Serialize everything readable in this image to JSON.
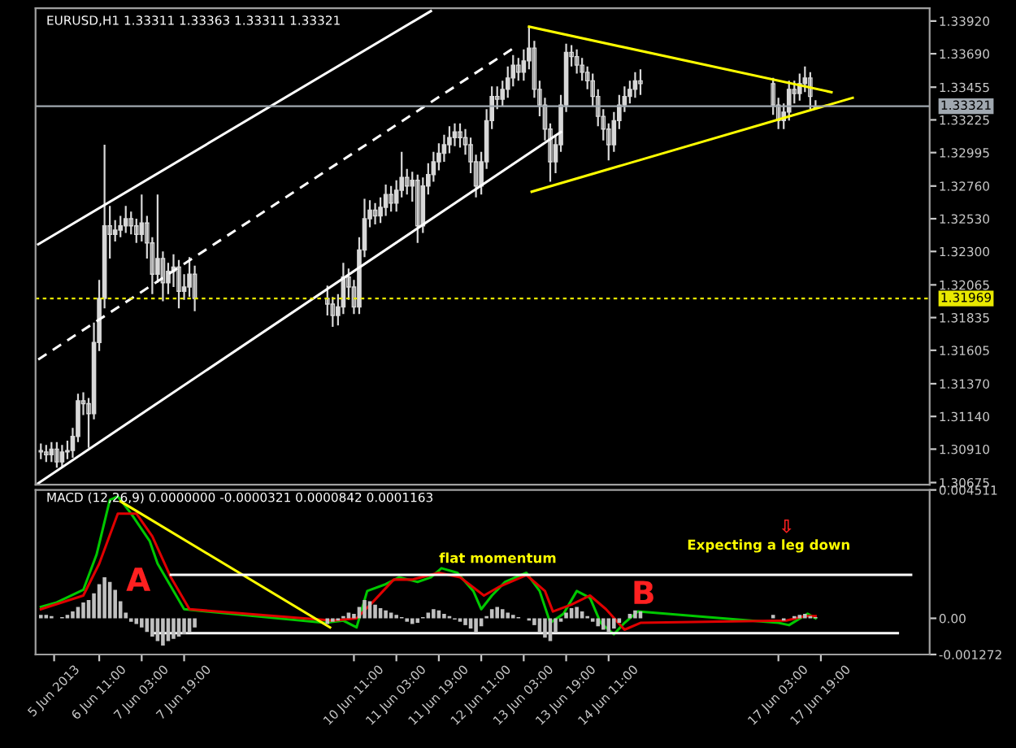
{
  "chart_data": [
    {
      "type": "candlestick",
      "title": "EURUSD,H1 1.33311 1.33363 1.33311 1.33321",
      "color": "#d8d8d8",
      "tick_labels": "y",
      "grid": false,
      "x": [
        "2013-06-05T13:00",
        "2013-06-05T15:00",
        "2013-06-05T17:00",
        "2013-06-05T19:00",
        "2013-06-05T21:00",
        "2013-06-05T23:00",
        "2013-06-06T01:00",
        "2013-06-06T03:00",
        "2013-06-06T05:00",
        "2013-06-06T07:00",
        "2013-06-06T09:00",
        "2013-06-06T11:00",
        "2013-06-06T13:00",
        "2013-06-06T15:00",
        "2013-06-06T17:00",
        "2013-06-06T19:00",
        "2013-06-06T21:00",
        "2013-06-06T23:00",
        "2013-06-07T01:00",
        "2013-06-07T03:00",
        "2013-06-07T05:00",
        "2013-06-07T07:00",
        "2013-06-07T09:00",
        "2013-06-07T11:00",
        "2013-06-07T13:00",
        "2013-06-07T15:00",
        "2013-06-07T17:00",
        "2013-06-07T19:00",
        "2013-06-07T21:00",
        "2013-06-07T23:00",
        "2013-06-10T01:00",
        "2013-06-10T03:00",
        "2013-06-10T05:00",
        "2013-06-10T07:00",
        "2013-06-10T09:00",
        "2013-06-10T11:00",
        "2013-06-10T13:00",
        "2013-06-10T15:00",
        "2013-06-10T17:00",
        "2013-06-10T19:00",
        "2013-06-10T21:00",
        "2013-06-10T23:00",
        "2013-06-11T01:00",
        "2013-06-11T03:00",
        "2013-06-11T05:00",
        "2013-06-11T07:00",
        "2013-06-11T09:00",
        "2013-06-11T11:00",
        "2013-06-11T13:00",
        "2013-06-11T15:00",
        "2013-06-11T17:00",
        "2013-06-11T19:00",
        "2013-06-11T21:00",
        "2013-06-11T23:00",
        "2013-06-12T01:00",
        "2013-06-12T03:00",
        "2013-06-12T05:00",
        "2013-06-12T07:00",
        "2013-06-12T09:00",
        "2013-06-12T11:00",
        "2013-06-12T13:00",
        "2013-06-12T15:00",
        "2013-06-12T17:00",
        "2013-06-12T19:00",
        "2013-06-12T21:00",
        "2013-06-12T23:00",
        "2013-06-13T01:00",
        "2013-06-13T03:00",
        "2013-06-13T05:00",
        "2013-06-13T07:00",
        "2013-06-13T09:00",
        "2013-06-13T11:00",
        "2013-06-13T13:00",
        "2013-06-13T15:00",
        "2013-06-13T17:00",
        "2013-06-13T19:00",
        "2013-06-13T21:00",
        "2013-06-13T23:00",
        "2013-06-14T01:00",
        "2013-06-14T03:00",
        "2013-06-14T05:00",
        "2013-06-14T07:00",
        "2013-06-14T09:00",
        "2013-06-14T11:00",
        "2013-06-14T13:00",
        "2013-06-14T15:00",
        "2013-06-14T17:00",
        "2013-06-14T19:00",
        "2013-06-14T21:00",
        "2013-06-14T23:00",
        "2013-06-17T01:00",
        "2013-06-17T03:00",
        "2013-06-17T05:00",
        "2013-06-17T07:00",
        "2013-06-17T09:00",
        "2013-06-17T11:00",
        "2013-06-17T13:00",
        "2013-06-17T15:00",
        "2013-06-17T17:00"
      ],
      "ohlc": [
        [
          1.309,
          1.3095,
          1.3084,
          1.3089
        ],
        [
          1.3089,
          1.3094,
          1.3082,
          1.3087
        ],
        [
          1.3087,
          1.3096,
          1.3082,
          1.3091
        ],
        [
          1.3091,
          1.3096,
          1.3078,
          1.3082
        ],
        [
          1.3082,
          1.3094,
          1.3078,
          1.3089
        ],
        [
          1.3089,
          1.3097,
          1.3084,
          1.309
        ],
        [
          1.309,
          1.3106,
          1.3085,
          1.31
        ],
        [
          1.31,
          1.313,
          1.3096,
          1.3125
        ],
        [
          1.3125,
          1.3131,
          1.3115,
          1.3123
        ],
        [
          1.3123,
          1.3127,
          1.3092,
          1.3116
        ],
        [
          1.3116,
          1.318,
          1.3112,
          1.3166
        ],
        [
          1.3166,
          1.321,
          1.316,
          1.3197
        ],
        [
          1.3197,
          1.3305,
          1.319,
          1.3248
        ],
        [
          1.3248,
          1.3262,
          1.3225,
          1.3242
        ],
        [
          1.3242,
          1.3252,
          1.3237,
          1.3245
        ],
        [
          1.3245,
          1.3255,
          1.324,
          1.3248
        ],
        [
          1.3248,
          1.3262,
          1.3243,
          1.3253
        ],
        [
          1.3253,
          1.3258,
          1.3242,
          1.3248
        ],
        [
          1.3248,
          1.3253,
          1.3236,
          1.3242
        ],
        [
          1.3242,
          1.327,
          1.3237,
          1.325
        ],
        [
          1.325,
          1.3255,
          1.3225,
          1.3236
        ],
        [
          1.3236,
          1.324,
          1.32,
          1.3214
        ],
        [
          1.3214,
          1.327,
          1.3208,
          1.3225
        ],
        [
          1.3225,
          1.323,
          1.3195,
          1.3208
        ],
        [
          1.3208,
          1.3222,
          1.32,
          1.3216
        ],
        [
          1.3216,
          1.3228,
          1.3205,
          1.3219
        ],
        [
          1.3219,
          1.3224,
          1.319,
          1.3202
        ],
        [
          1.3202,
          1.3214,
          1.3196,
          1.3205
        ],
        [
          1.3205,
          1.3226,
          1.3198,
          1.3214
        ],
        [
          1.3214,
          1.322,
          1.3188,
          1.3197
        ],
        [
          1.3197,
          1.3206,
          1.3185,
          1.3193
        ],
        [
          1.3193,
          1.3198,
          1.3177,
          1.3185
        ],
        [
          1.3185,
          1.32,
          1.3178,
          1.3191
        ],
        [
          1.3191,
          1.3222,
          1.3186,
          1.3212
        ],
        [
          1.3212,
          1.3218,
          1.3196,
          1.3205
        ],
        [
          1.3205,
          1.321,
          1.3186,
          1.3191
        ],
        [
          1.3191,
          1.324,
          1.3186,
          1.3231
        ],
        [
          1.3231,
          1.3267,
          1.3226,
          1.3253
        ],
        [
          1.3253,
          1.3266,
          1.3247,
          1.3259
        ],
        [
          1.3259,
          1.3264,
          1.3249,
          1.3255
        ],
        [
          1.3255,
          1.3268,
          1.325,
          1.3261
        ],
        [
          1.3261,
          1.3277,
          1.3255,
          1.327
        ],
        [
          1.327,
          1.3276,
          1.3258,
          1.3264
        ],
        [
          1.3264,
          1.328,
          1.3258,
          1.3273
        ],
        [
          1.3273,
          1.33,
          1.3268,
          1.3282
        ],
        [
          1.3282,
          1.3288,
          1.327,
          1.3276
        ],
        [
          1.3276,
          1.3286,
          1.3265,
          1.328
        ],
        [
          1.328,
          1.3284,
          1.3236,
          1.3248
        ],
        [
          1.3248,
          1.3282,
          1.3243,
          1.3276
        ],
        [
          1.3276,
          1.3292,
          1.327,
          1.3284
        ],
        [
          1.3284,
          1.33,
          1.3279,
          1.3293
        ],
        [
          1.3293,
          1.3306,
          1.3287,
          1.3299
        ],
        [
          1.3299,
          1.3312,
          1.3293,
          1.3305
        ],
        [
          1.3305,
          1.3318,
          1.3299,
          1.331
        ],
        [
          1.331,
          1.332,
          1.3304,
          1.3314
        ],
        [
          1.3314,
          1.332,
          1.3303,
          1.331
        ],
        [
          1.331,
          1.3316,
          1.3298,
          1.3305
        ],
        [
          1.3305,
          1.331,
          1.3285,
          1.3293
        ],
        [
          1.3293,
          1.3298,
          1.3268,
          1.3276
        ],
        [
          1.3276,
          1.33,
          1.327,
          1.3293
        ],
        [
          1.3293,
          1.333,
          1.3288,
          1.3322
        ],
        [
          1.3322,
          1.3346,
          1.3316,
          1.3339
        ],
        [
          1.3339,
          1.3346,
          1.333,
          1.3337
        ],
        [
          1.3337,
          1.335,
          1.3332,
          1.3344
        ],
        [
          1.3344,
          1.336,
          1.3338,
          1.3352
        ],
        [
          1.3352,
          1.3368,
          1.3346,
          1.3361
        ],
        [
          1.3361,
          1.3366,
          1.335,
          1.3356
        ],
        [
          1.3356,
          1.3372,
          1.335,
          1.3364
        ],
        [
          1.3364,
          1.3388,
          1.3358,
          1.3373
        ],
        [
          1.3373,
          1.3378,
          1.3338,
          1.3344
        ],
        [
          1.3344,
          1.335,
          1.3325,
          1.3333
        ],
        [
          1.3333,
          1.3338,
          1.3308,
          1.3316
        ],
        [
          1.3316,
          1.332,
          1.3279,
          1.3293
        ],
        [
          1.3293,
          1.3312,
          1.3285,
          1.3305
        ],
        [
          1.3305,
          1.334,
          1.33,
          1.3333
        ],
        [
          1.3333,
          1.3376,
          1.3328,
          1.337
        ],
        [
          1.337,
          1.3375,
          1.336,
          1.3367
        ],
        [
          1.3367,
          1.3372,
          1.3355,
          1.3361
        ],
        [
          1.3361,
          1.3366,
          1.335,
          1.3356
        ],
        [
          1.3356,
          1.336,
          1.3344,
          1.335
        ],
        [
          1.335,
          1.3355,
          1.3332,
          1.3339
        ],
        [
          1.3339,
          1.3344,
          1.3318,
          1.3325
        ],
        [
          1.3325,
          1.333,
          1.3308,
          1.3316
        ],
        [
          1.3316,
          1.332,
          1.3294,
          1.3305
        ],
        [
          1.3305,
          1.3328,
          1.33,
          1.3322
        ],
        [
          1.3322,
          1.334,
          1.3316,
          1.3333
        ],
        [
          1.3333,
          1.3346,
          1.3328,
          1.3339
        ],
        [
          1.3339,
          1.335,
          1.3334,
          1.3344
        ],
        [
          1.3344,
          1.3356,
          1.3338,
          1.335
        ],
        [
          1.335,
          1.3358,
          1.334,
          1.3348
        ],
        [
          1.3348,
          1.3352,
          1.3326,
          1.3333
        ],
        [
          1.3333,
          1.3338,
          1.3316,
          1.3322
        ],
        [
          1.3322,
          1.3334,
          1.3316,
          1.3328
        ],
        [
          1.3328,
          1.335,
          1.3322,
          1.3344
        ],
        [
          1.3344,
          1.335,
          1.3334,
          1.3341
        ],
        [
          1.3341,
          1.3355,
          1.3336,
          1.3348
        ],
        [
          1.3348,
          1.336,
          1.3342,
          1.3352
        ],
        [
          1.3352,
          1.3356,
          1.333,
          1.3339
        ],
        [
          1.33311,
          1.33363,
          1.33311,
          1.33321
        ]
      ],
      "xlim": [
        "2013-06-05T11:00",
        "2013-06-19T12:00"
      ],
      "ylim": [
        1.3066,
        1.3401
      ],
      "yticks": [
        {
          "value": 1.3392,
          "label": "1.33920"
        },
        {
          "value": 1.3369,
          "label": "1.33690"
        },
        1.33455,
        1.33225,
        1.32995,
        {
          "value": 1.3276,
          "label": "1.32760"
        },
        {
          "value": 1.3253,
          "label": "1.32530"
        },
        {
          "value": 1.323,
          "label": "1.32300"
        },
        1.32065,
        1.31835,
        1.31605,
        {
          "value": 1.3137,
          "label": "1.31370"
        },
        {
          "value": 1.3114,
          "label": "1.31140"
        },
        {
          "value": 1.3091,
          "label": "1.30910"
        },
        1.30675
      ],
      "ref_lines": [
        {
          "axis": "y",
          "value": 1.33321,
          "label": "1.33321",
          "color": "#a0a8b0",
          "line_style": "solid"
        },
        {
          "axis": "y",
          "value": 1.31969,
          "label": "1.31969",
          "color": "#e8e800",
          "line_style": "dotted"
        }
      ],
      "series": [
        {
          "type": "line",
          "x": [
            "2013-06-05T12:00",
            "2013-06-11T16:00"
          ],
          "values": [
            1.3235,
            1.3399
          ],
          "color": "#ffffff",
          "line_style": "solid"
        },
        {
          "type": "line",
          "x": [
            "2013-06-05T12:00",
            "2013-06-13T00:00"
          ],
          "values": [
            1.3154,
            1.3374
          ],
          "color": "#ffffff",
          "line_style": "dashed"
        },
        {
          "type": "line",
          "x": [
            "2013-06-05T12:00",
            "2013-06-13T17:00"
          ],
          "values": [
            1.3067,
            1.3314
          ],
          "color": "#ffffff",
          "line_style": "solid"
        },
        {
          "type": "line",
          "x": [
            "2013-06-13T05:00",
            "2013-06-17T23:00"
          ],
          "values": [
            1.3388,
            1.3342
          ],
          "color": "#ffff00",
          "line_style": "solid"
        },
        {
          "type": "line",
          "x": [
            "2013-06-13T06:00",
            "2013-06-18T07:00"
          ],
          "values": [
            1.3272,
            1.3338
          ],
          "color": "#ffff00",
          "line_style": "solid"
        }
      ]
    },
    {
      "type": "bar",
      "title": "MACD (12,26,9) 0.0000000 -0.0000321 0.0000842 0.0001163",
      "grid": false,
      "xlim": [
        "2013-06-05T11:00",
        "2013-06-19T12:00"
      ],
      "ylim": [
        -0.001272,
        0.004511
      ],
      "yticks": [
        0.004511,
        {
          "value": 0,
          "label": "0.00"
        },
        -0.001272
      ],
      "xticks": [
        {
          "value": "2013-06-05T18:00",
          "label": "5 Jun 2013"
        },
        {
          "value": "2013-06-06T11:00",
          "label": "6 Jun 11:00"
        },
        {
          "value": "2013-06-07T03:00",
          "label": "7 Jun 03:00"
        },
        {
          "value": "2013-06-07T19:00",
          "label": "7 Jun 19:00"
        },
        {
          "value": "2013-06-10T11:00",
          "label": "10 Jun 11:00"
        },
        {
          "value": "2013-06-11T03:00",
          "label": "11 Jun 03:00"
        },
        {
          "value": "2013-06-11T19:00",
          "label": "11 Jun 19:00"
        },
        {
          "value": "2013-06-12T11:00",
          "label": "12 Jun 11:00"
        },
        {
          "value": "2013-06-13T03:00",
          "label": "13 Jun 03:00"
        },
        {
          "value": "2013-06-13T19:00",
          "label": "13 Jun 19:00"
        },
        {
          "value": "2013-06-14T11:00",
          "label": "14 Jun 11:00"
        },
        {
          "value": "2013-06-17T03:00",
          "label": "17 Jun 03:00"
        },
        {
          "value": "2013-06-17T19:00",
          "label": "17 Jun 19:00"
        }
      ],
      "annotations": [
        "A",
        "flat momentum",
        "B",
        "Expecting a leg down",
        "⇩"
      ],
      "series": [
        {
          "type": "bar",
          "color": "#c0c0c0",
          "x": [
            "2013-06-05T13:00",
            "2013-06-05T15:00",
            "2013-06-05T17:00",
            "2013-06-05T19:00",
            "2013-06-05T21:00",
            "2013-06-05T23:00",
            "2013-06-06T01:00",
            "2013-06-06T03:00",
            "2013-06-06T05:00",
            "2013-06-06T07:00",
            "2013-06-06T09:00",
            "2013-06-06T11:00",
            "2013-06-06T13:00",
            "2013-06-06T15:00",
            "2013-06-06T17:00",
            "2013-06-06T19:00",
            "2013-06-06T21:00",
            "2013-06-06T23:00",
            "2013-06-07T01:00",
            "2013-06-07T03:00",
            "2013-06-07T05:00",
            "2013-06-07T07:00",
            "2013-06-07T09:00",
            "2013-06-07T11:00",
            "2013-06-07T13:00",
            "2013-06-07T15:00",
            "2013-06-07T17:00",
            "2013-06-07T19:00",
            "2013-06-07T21:00",
            "2013-06-07T23:00",
            "2013-06-10T01:00",
            "2013-06-10T03:00",
            "2013-06-10T05:00",
            "2013-06-10T07:00",
            "2013-06-10T09:00",
            "2013-06-10T11:00",
            "2013-06-10T13:00",
            "2013-06-10T15:00",
            "2013-06-10T17:00",
            "2013-06-10T19:00",
            "2013-06-10T21:00",
            "2013-06-10T23:00",
            "2013-06-11T01:00",
            "2013-06-11T03:00",
            "2013-06-11T05:00",
            "2013-06-11T07:00",
            "2013-06-11T09:00",
            "2013-06-11T11:00",
            "2013-06-11T13:00",
            "2013-06-11T15:00",
            "2013-06-11T17:00",
            "2013-06-11T19:00",
            "2013-06-11T21:00",
            "2013-06-11T23:00",
            "2013-06-12T01:00",
            "2013-06-12T03:00",
            "2013-06-12T05:00",
            "2013-06-12T07:00",
            "2013-06-12T09:00",
            "2013-06-12T11:00",
            "2013-06-12T13:00",
            "2013-06-12T15:00",
            "2013-06-12T17:00",
            "2013-06-12T19:00",
            "2013-06-12T21:00",
            "2013-06-12T23:00",
            "2013-06-13T01:00",
            "2013-06-13T03:00",
            "2013-06-13T05:00",
            "2013-06-13T07:00",
            "2013-06-13T09:00",
            "2013-06-13T11:00",
            "2013-06-13T13:00",
            "2013-06-13T15:00",
            "2013-06-13T17:00",
            "2013-06-13T19:00",
            "2013-06-13T21:00",
            "2013-06-13T23:00",
            "2013-06-14T01:00",
            "2013-06-14T03:00",
            "2013-06-14T05:00",
            "2013-06-14T07:00",
            "2013-06-14T09:00",
            "2013-06-14T11:00",
            "2013-06-14T13:00",
            "2013-06-14T15:00",
            "2013-06-14T17:00",
            "2013-06-14T19:00",
            "2013-06-14T21:00",
            "2013-06-14T23:00",
            "2013-06-17T01:00",
            "2013-06-17T03:00",
            "2013-06-17T05:00",
            "2013-06-17T07:00",
            "2013-06-17T09:00",
            "2013-06-17T11:00",
            "2013-06-17T13:00",
            "2013-06-17T15:00",
            "2013-06-17T17:00"
          ],
          "values": [
            0.00012,
            0.00012,
            8e-05,
            0,
            4e-05,
            0.00012,
            0.00024,
            0.0004,
            0.00056,
            0.00064,
            0.00088,
            0.0012,
            0.00144,
            0.00128,
            0.001,
            0.0006,
            0.0002,
            -0.00012,
            -0.0002,
            -0.00032,
            -0.00048,
            -0.00064,
            -0.0008,
            -0.00096,
            -0.0008,
            -0.00072,
            -0.00064,
            -0.00056,
            -0.00048,
            -0.00032,
            -0.0002,
            -0.00012,
            -8e-05,
            8e-05,
            0.0002,
            0.00016,
            0.0004,
            0.00064,
            0.0006,
            0.00048,
            0.00036,
            0.00028,
            0.0002,
            0.00012,
            4e-05,
            -0.00012,
            -0.0002,
            -0.00016,
            4e-05,
            0.0002,
            0.00032,
            0.00028,
            0.00016,
            8e-05,
            -4e-05,
            -0.00012,
            -0.00024,
            -0.00036,
            -0.00048,
            -0.00028,
            8e-05,
            0.00032,
            0.0004,
            0.00032,
            0.0002,
            0.00012,
            4e-05,
            0,
            -8e-05,
            -0.00024,
            -0.00048,
            -0.00068,
            -0.0008,
            -0.00048,
            -0.00012,
            0.0002,
            0.00036,
            0.0004,
            0.00024,
            8e-05,
            -0.00012,
            -0.00028,
            -0.0004,
            -0.00048,
            -0.00036,
            -0.00016,
            0,
            0.00016,
            0.00028,
            0.00024,
            0.00012,
            0,
            -8e-05,
            0,
            8e-05,
            0.00012,
            0.00016,
            8e-05,
            4e-05
          ]
        },
        {
          "type": "line",
          "color": "#00c800",
          "line_style": "solid",
          "x": [
            "2013-06-05T13:00",
            "2013-06-05T19:00",
            "2013-06-06T05:00",
            "2013-06-06T10:00",
            "2013-06-06T15:00",
            "2013-06-06T18:00",
            "2013-06-06T23:00",
            "2013-06-07T06:00",
            "2013-06-07T09:00",
            "2013-06-07T14:00",
            "2013-06-07T19:00",
            "2013-06-10T00:00",
            "2013-06-10T07:00",
            "2013-06-10T12:00",
            "2013-06-10T16:00",
            "2013-06-10T23:00",
            "2013-06-11T04:00",
            "2013-06-11T11:00",
            "2013-06-11T16:00",
            "2013-06-11T20:00",
            "2013-06-12T02:00",
            "2013-06-12T08:00",
            "2013-06-12T11:00",
            "2013-06-12T15:00",
            "2013-06-12T20:00",
            "2013-06-13T04:00",
            "2013-06-13T09:00",
            "2013-06-13T13:00",
            "2013-06-13T18:00",
            "2013-06-13T23:00",
            "2013-06-14T04:00",
            "2013-06-14T08:00",
            "2013-06-14T13:00",
            "2013-06-14T17:00",
            "2013-06-14T22:00",
            "2013-06-17T03:00",
            "2013-06-17T07:00",
            "2013-06-17T14:00",
            "2013-06-17T17:00"
          ],
          "values": [
            0.0004,
            0.00056,
            0.001,
            0.00224,
            0.00416,
            0.00428,
            0.00368,
            0.00272,
            0.00192,
            0.00112,
            0.00032,
            -0.00016,
            -8e-05,
            -0.00032,
            0.00096,
            0.0012,
            0.00144,
            0.00128,
            0.00144,
            0.00176,
            0.0016,
            0.00096,
            0.00032,
            0.0008,
            0.00128,
            0.0016,
            0.00096,
            -0.00016,
            0.00016,
            0.00096,
            0.00072,
            -0.00016,
            -0.00056,
            -0.00016,
            0.00024,
            -0.00016,
            -0.00024,
            0.00016,
            0
          ]
        },
        {
          "type": "line",
          "color": "#e00000",
          "line_style": "solid",
          "x": [
            "2013-06-05T13:00",
            "2013-06-06T05:00",
            "2013-06-06T11:00",
            "2013-06-06T18:00",
            "2013-06-07T01:00",
            "2013-06-07T07:00",
            "2013-06-07T14:00",
            "2013-06-07T21:00",
            "2013-06-10T03:00",
            "2013-06-10T12:00",
            "2013-06-10T18:00",
            "2013-06-11T02:00",
            "2013-06-11T09:00",
            "2013-06-11T19:00",
            "2013-06-12T03:00",
            "2013-06-12T12:00",
            "2013-06-12T18:00",
            "2013-06-13T04:00",
            "2013-06-13T11:00",
            "2013-06-13T14:00",
            "2013-06-13T21:00",
            "2013-06-14T04:00",
            "2013-06-14T10:00",
            "2013-06-14T17:00",
            "2013-06-14T23:00",
            "2013-06-17T06:00",
            "2013-06-17T13:00",
            "2013-06-17T17:00"
          ],
          "values": [
            0.00032,
            0.0008,
            0.00192,
            0.00368,
            0.00368,
            0.00288,
            0.00144,
            0.00032,
            -8e-05,
            0,
            0.00056,
            0.00136,
            0.00136,
            0.0016,
            0.00144,
            0.0008,
            0.00112,
            0.00152,
            0.00096,
            0.00024,
            0.00048,
            0.0008,
            0.00032,
            -0.0004,
            -0.00016,
            -8e-05,
            8e-05,
            8e-05
          ]
        },
        {
          "type": "line",
          "color": "#ffff00",
          "line_style": "solid",
          "x": [
            "2013-06-06T19:00",
            "2013-06-10T02:00"
          ],
          "values": [
            0.00411,
            -0.00032
          ]
        },
        {
          "type": "line",
          "color": "#ffffff",
          "line_style": "solid",
          "x": [
            "2013-06-07T14:00",
            "2013-06-19T05:00"
          ],
          "values": [
            0.00153,
            0.00153
          ]
        },
        {
          "type": "line",
          "color": "#ffffff",
          "line_style": "solid",
          "x": [
            "2013-06-07T08:00",
            "2013-06-19T00:00"
          ],
          "values": [
            -0.00052,
            -0.00052
          ]
        }
      ]
    }
  ]
}
